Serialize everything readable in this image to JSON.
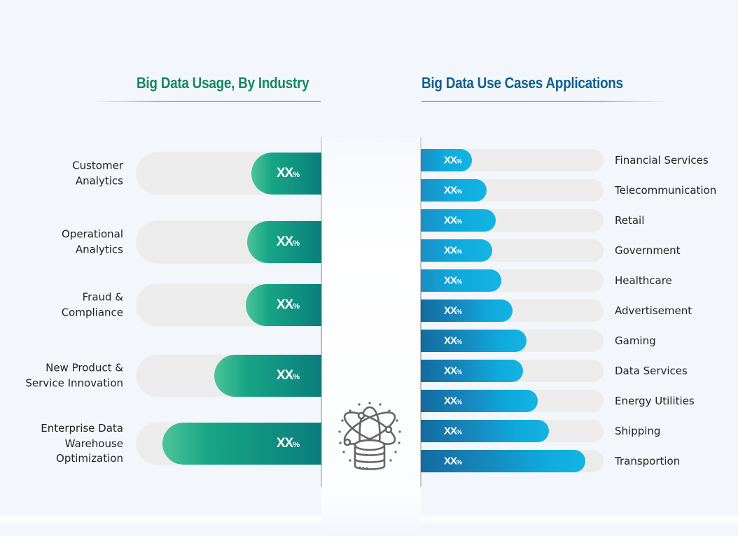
{
  "left_panel": {
    "title": "Big Data Usage, By Industry",
    "accent_color": "#17875f"
  },
  "right_panel": {
    "title": "Big Data Use Cases Applications",
    "accent_color": "#11608e"
  },
  "center_icon": "database-atom-icon",
  "chart_data": [
    {
      "type": "bar",
      "orientation": "horizontal",
      "title": "Big Data Usage, By Industry",
      "categories": [
        "Customer\nAnalytics",
        "Operational\nAnalytics",
        "Fraud &\nCompliance",
        "New Product &\nService Innovation",
        "Enterprise Data\nWarehouse\nOptimization"
      ],
      "value_labels": [
        "XX",
        "XX",
        "XX",
        "XX",
        "XX"
      ],
      "unit": "%",
      "values": [
        38,
        40,
        41,
        58,
        86
      ],
      "xlim": [
        0,
        100
      ],
      "bar_direction": "right-to-left",
      "bar_color": "#17a585"
    },
    {
      "type": "bar",
      "orientation": "horizontal",
      "title": "Big Data Use Cases Applications",
      "categories": [
        "Financial Services",
        "Telecommunication",
        "Retail",
        "Government",
        "Healthcare",
        "Advertisement",
        "Gaming",
        "Data Services",
        "Energy Utilities",
        "Shipping",
        "Transportion"
      ],
      "value_labels": [
        "XX",
        "XX",
        "XX",
        "XX",
        "XX",
        "XX",
        "XX",
        "XX",
        "XX",
        "XX",
        "XX"
      ],
      "unit": "%",
      "values": [
        28,
        36,
        41,
        39,
        44,
        50,
        58,
        56,
        64,
        70,
        90
      ],
      "xlim": [
        0,
        100
      ],
      "bar_direction": "left-to-right",
      "bar_color": "#0fa9dc"
    }
  ]
}
